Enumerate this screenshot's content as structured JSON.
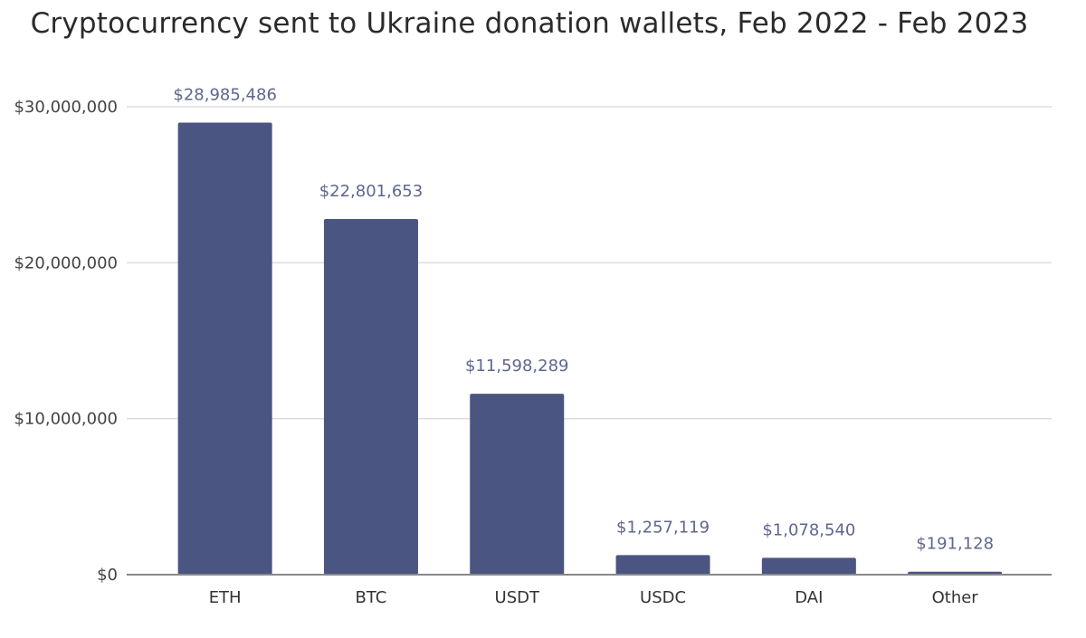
{
  "chart_data": {
    "type": "bar",
    "title": "Cryptocurrency sent to Ukraine donation wallets, Feb 2022 - Feb 2023",
    "xlabel": "",
    "ylabel": "",
    "categories": [
      "ETH",
      "BTC",
      "USDT",
      "USDC",
      "DAI",
      "Other"
    ],
    "values": [
      28985486,
      22801653,
      11598289,
      1257119,
      1078540,
      191128
    ],
    "data_labels": [
      "$28,985,486",
      "$22,801,653",
      "$11,598,289",
      "$1,257,119",
      "$1,078,540",
      "$191,128"
    ],
    "ylim": [
      0,
      30000000
    ],
    "yticks": [
      0,
      10000000,
      20000000,
      30000000
    ],
    "ytick_labels": [
      "$0",
      "$10,000,000",
      "$20,000,000",
      "$30,000,000"
    ],
    "grid": true,
    "legend": "none",
    "bar_color": "#4b5582",
    "label_color": "#5f6790",
    "grid_color": "#dddddd",
    "axis_color": "#888888"
  }
}
